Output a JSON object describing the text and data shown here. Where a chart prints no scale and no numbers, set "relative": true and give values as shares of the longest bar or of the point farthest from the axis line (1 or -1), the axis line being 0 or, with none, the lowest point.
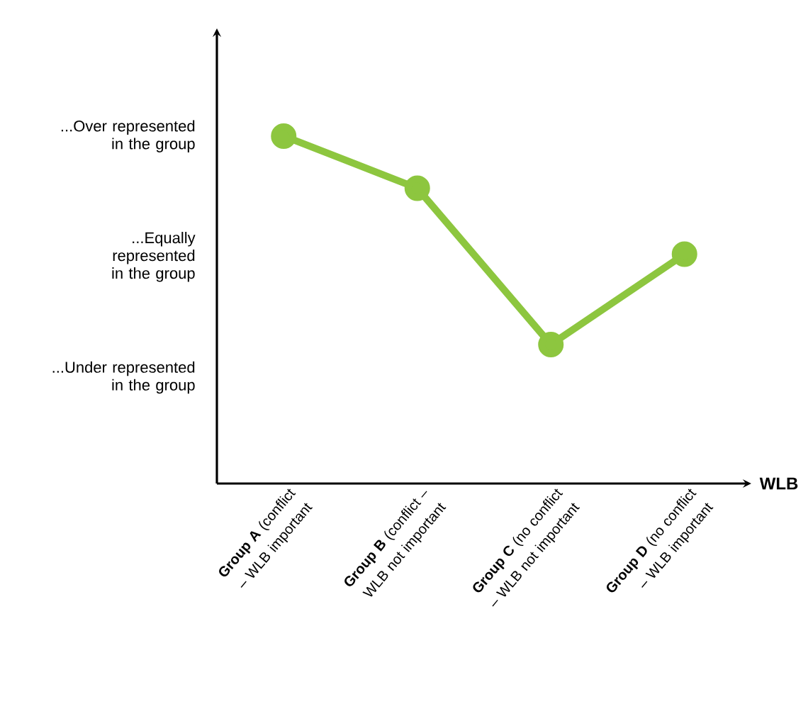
{
  "chart_data": {
    "type": "line",
    "xlabel": "WLB",
    "relative": true,
    "categories": [
      "**Group A** (conflict – WLB important",
      "**Group B** (conflict – WLB not important",
      "**Group C** (no conflict – WLB not important",
      "**Group D** (no conflict – WLB important"
    ],
    "series": [
      {
        "color": "#8dc63f",
        "values": [
          1.0,
          0.85,
          0.4,
          0.66
        ]
      }
    ],
    "annotations": [
      "...Over represented in the group",
      "...Equally represented in the group",
      "...Under represented in the group"
    ],
    "marker": "circle",
    "line_style": "solid"
  }
}
